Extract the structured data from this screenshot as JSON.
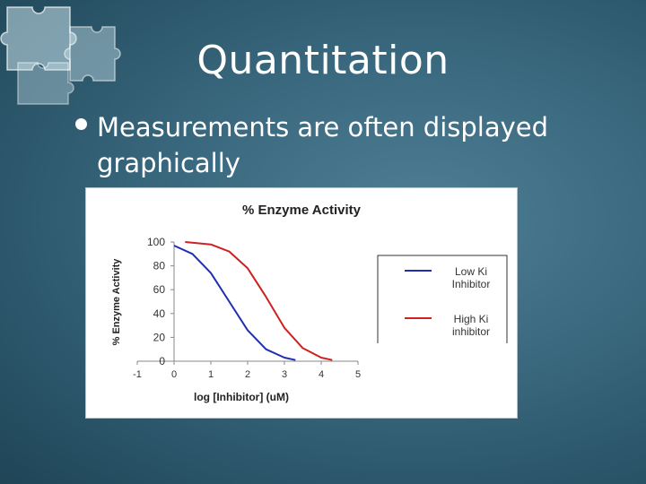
{
  "slide": {
    "title": "Quantitation",
    "bullet": "Measurements are often displayed graphically"
  },
  "colors": {
    "background": "#3b6a80",
    "low_ki": "#1f2fb0",
    "high_ki": "#cc2222"
  },
  "chart_data": {
    "type": "line",
    "title": "% Enzyme Activity",
    "xlabel": "log [Inhibitor] (uM)",
    "ylabel": "% Enzyme Activity",
    "xlim": [
      -1,
      5
    ],
    "ylim": [
      0,
      100
    ],
    "x_ticks": [
      "-1",
      "0",
      "1",
      "2",
      "3",
      "4",
      "5"
    ],
    "y_ticks": [
      "0",
      "20",
      "40",
      "60",
      "80",
      "100"
    ],
    "grid": false,
    "legend_position": "right",
    "series": [
      {
        "name": "Low Ki Inhibitor",
        "color": "#1f2fb0",
        "points": [
          [
            0,
            97
          ],
          [
            0.5,
            90
          ],
          [
            1,
            74
          ],
          [
            1.5,
            50
          ],
          [
            2,
            26
          ],
          [
            2.5,
            10
          ],
          [
            3,
            3
          ],
          [
            3.3,
            1
          ]
        ]
      },
      {
        "name": "High Ki inhibitor",
        "color": "#cc2222",
        "points": [
          [
            0.3,
            100
          ],
          [
            1,
            98
          ],
          [
            1.5,
            92
          ],
          [
            2,
            78
          ],
          [
            2.5,
            54
          ],
          [
            3,
            28
          ],
          [
            3.5,
            11
          ],
          [
            4,
            3
          ],
          [
            4.3,
            1
          ]
        ]
      }
    ]
  }
}
